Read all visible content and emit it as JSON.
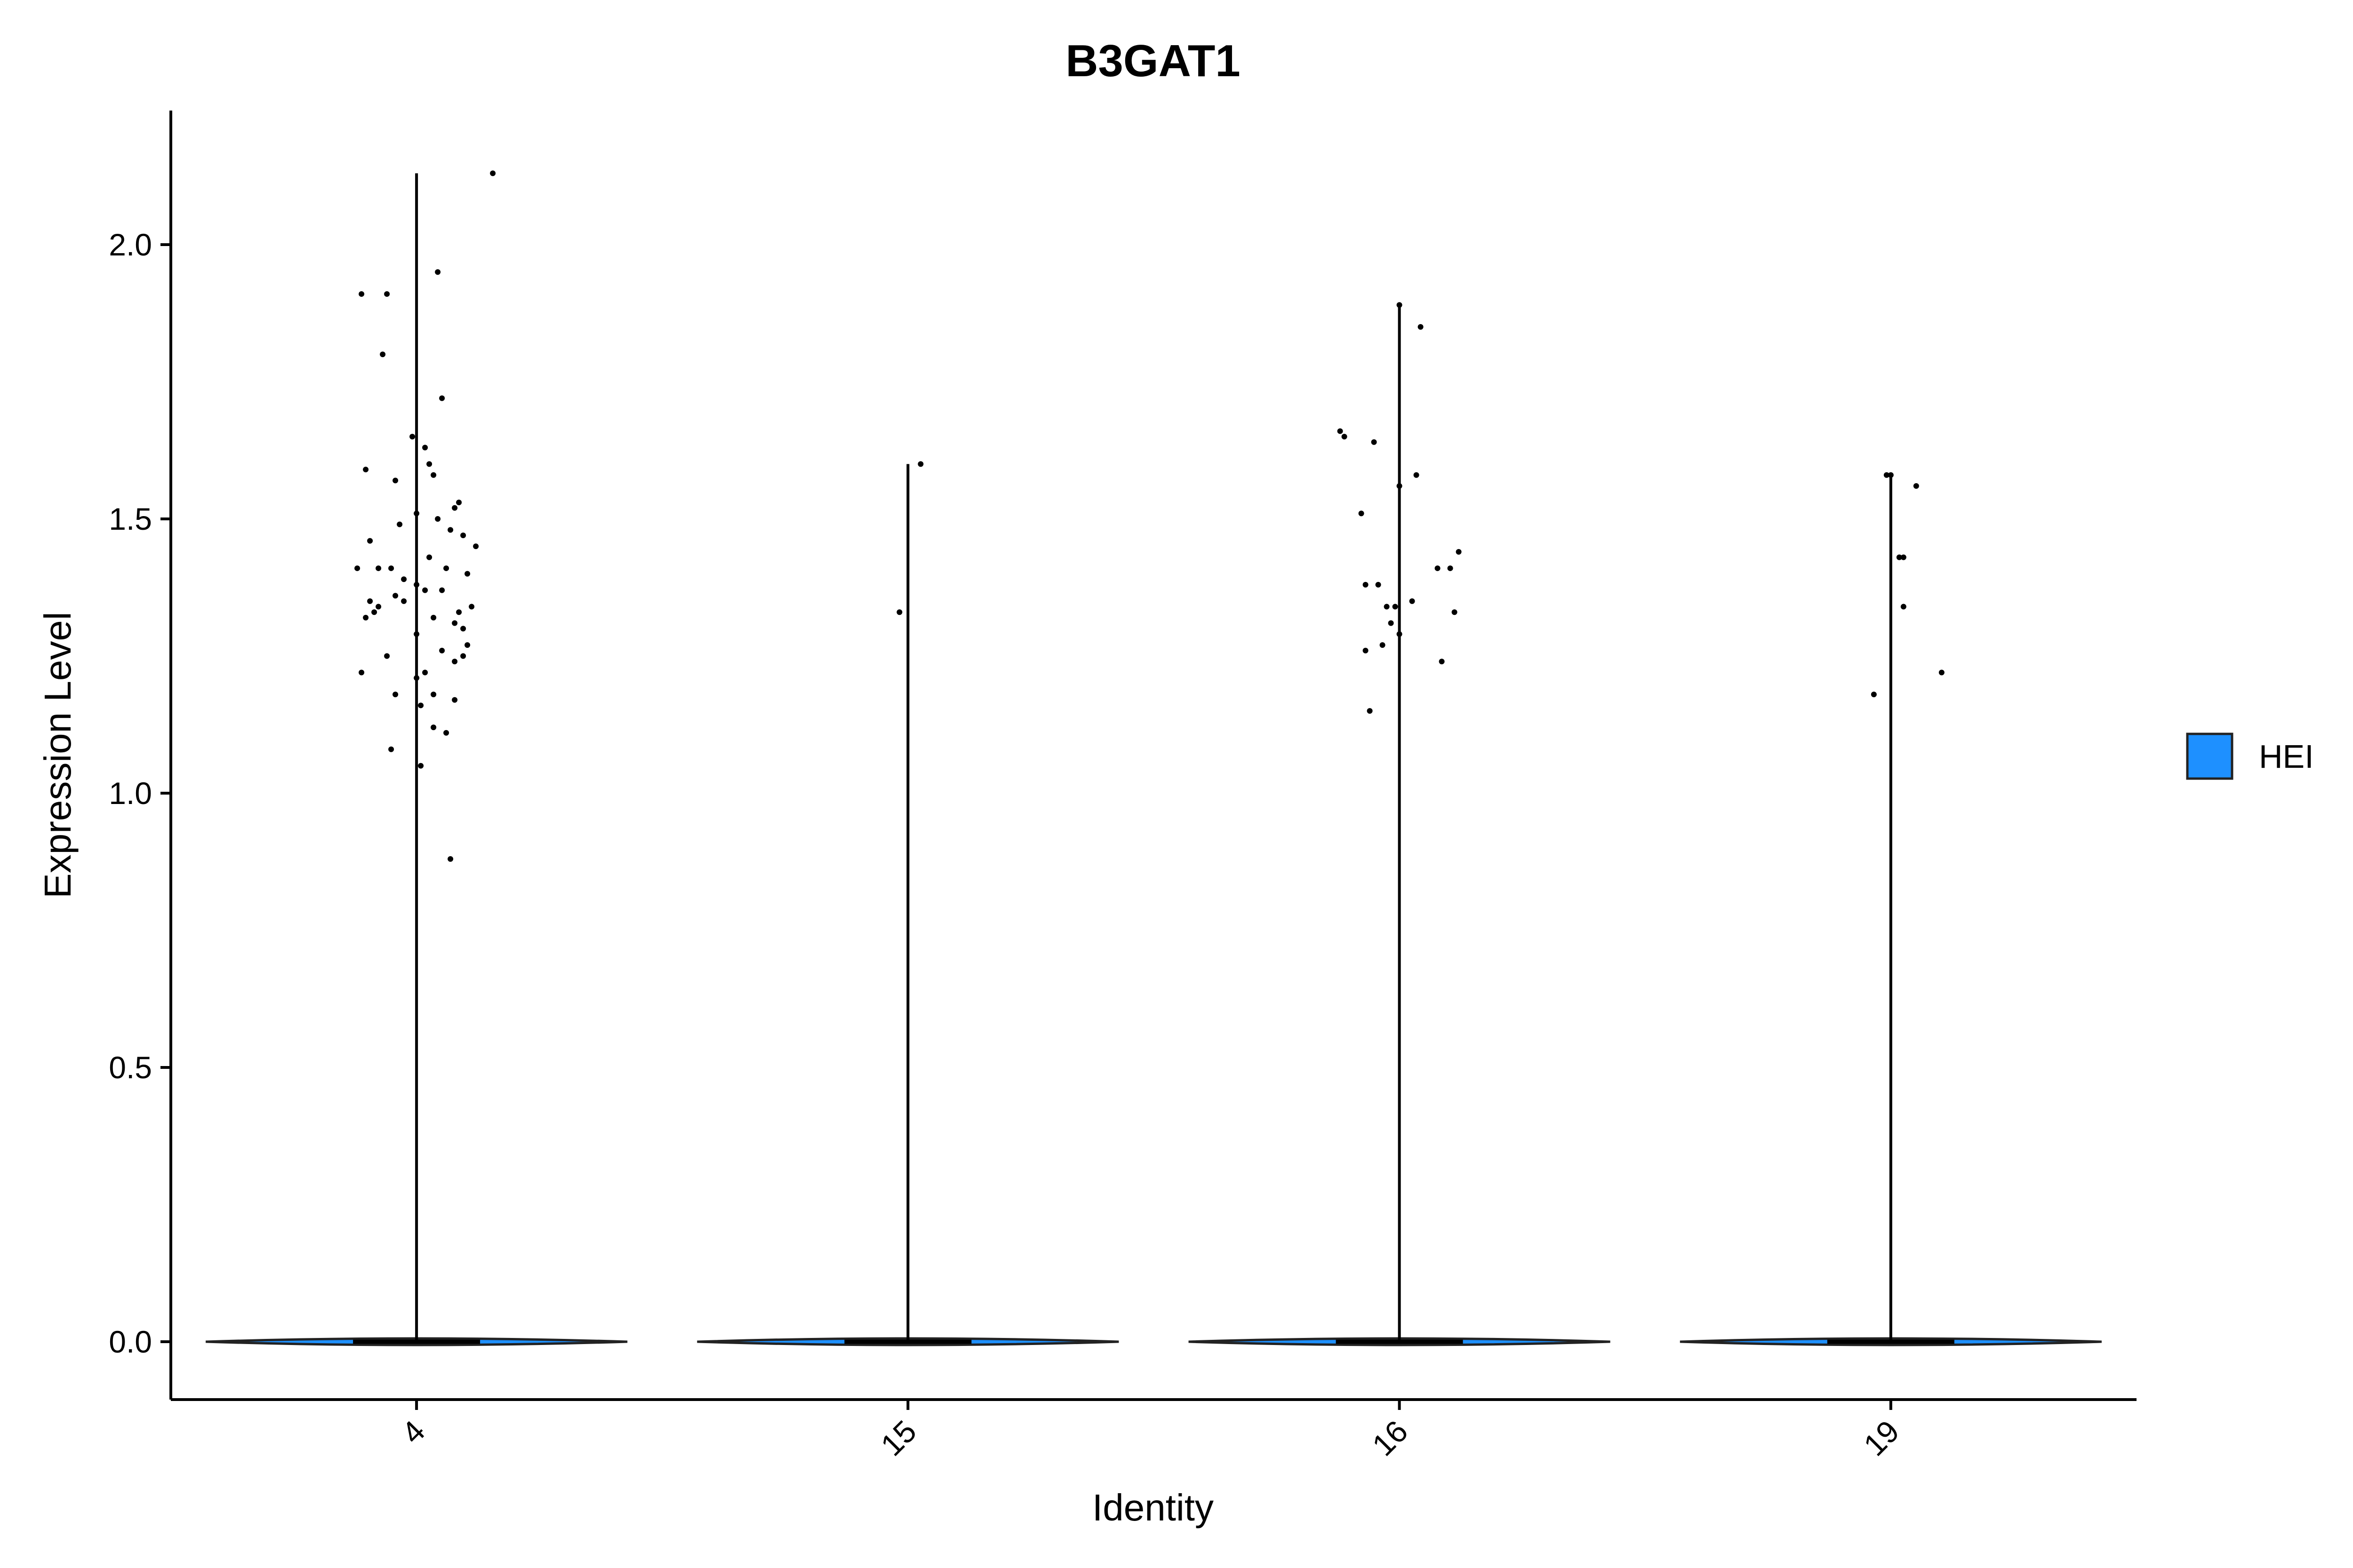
{
  "chart_data": {
    "type": "violin",
    "title": "B3GAT1",
    "xlabel": "Identity",
    "ylabel": "Expression Level",
    "ylim": [
      -0.1,
      2.25
    ],
    "yticks": [
      0.0,
      0.5,
      1.0,
      1.5,
      2.0
    ],
    "ytick_labels": [
      "0.0",
      "0.5",
      "1.0",
      "1.5",
      "2.0"
    ],
    "categories": [
      "4",
      "15",
      "16",
      "19"
    ],
    "legend": {
      "position": "right",
      "entries": [
        {
          "name": "HEI",
          "color": "#1E90FF"
        }
      ]
    },
    "violin_color": "#1E90FF",
    "groups": [
      {
        "category": "4",
        "max": 2.13,
        "points": [
          [
            0.18,
            2.13
          ],
          [
            -0.13,
            1.91
          ],
          [
            0.05,
            1.95
          ],
          [
            -0.07,
            1.91
          ],
          [
            -0.08,
            1.8
          ],
          [
            0.06,
            1.72
          ],
          [
            -0.01,
            1.65
          ],
          [
            0.02,
            1.63
          ],
          [
            0.03,
            1.6
          ],
          [
            -0.12,
            1.59
          ],
          [
            0.04,
            1.58
          ],
          [
            -0.05,
            1.57
          ],
          [
            0.1,
            1.53
          ],
          [
            0.09,
            1.52
          ],
          [
            0.0,
            1.51
          ],
          [
            0.05,
            1.5
          ],
          [
            -0.04,
            1.49
          ],
          [
            0.08,
            1.48
          ],
          [
            0.11,
            1.47
          ],
          [
            -0.11,
            1.46
          ],
          [
            0.14,
            1.45
          ],
          [
            0.03,
            1.43
          ],
          [
            -0.14,
            1.41
          ],
          [
            -0.09,
            1.41
          ],
          [
            -0.06,
            1.41
          ],
          [
            0.07,
            1.41
          ],
          [
            0.12,
            1.4
          ],
          [
            -0.03,
            1.39
          ],
          [
            0.0,
            1.38
          ],
          [
            0.06,
            1.37
          ],
          [
            0.02,
            1.37
          ],
          [
            -0.05,
            1.36
          ],
          [
            -0.03,
            1.35
          ],
          [
            -0.11,
            1.35
          ],
          [
            -0.09,
            1.34
          ],
          [
            0.13,
            1.34
          ],
          [
            0.1,
            1.33
          ],
          [
            -0.1,
            1.33
          ],
          [
            -0.12,
            1.32
          ],
          [
            0.04,
            1.32
          ],
          [
            0.09,
            1.31
          ],
          [
            0.11,
            1.3
          ],
          [
            0.0,
            1.29
          ],
          [
            0.12,
            1.27
          ],
          [
            0.06,
            1.26
          ],
          [
            -0.07,
            1.25
          ],
          [
            0.11,
            1.25
          ],
          [
            0.09,
            1.24
          ],
          [
            -0.13,
            1.22
          ],
          [
            0.02,
            1.22
          ],
          [
            0.0,
            1.21
          ],
          [
            -0.05,
            1.18
          ],
          [
            0.04,
            1.18
          ],
          [
            0.09,
            1.17
          ],
          [
            0.01,
            1.16
          ],
          [
            0.04,
            1.12
          ],
          [
            0.07,
            1.11
          ],
          [
            -0.06,
            1.08
          ],
          [
            0.01,
            1.05
          ],
          [
            0.08,
            0.88
          ]
        ]
      },
      {
        "category": "15",
        "max": 1.6,
        "points": [
          [
            0.03,
            1.6
          ],
          [
            -0.02,
            1.33
          ]
        ]
      },
      {
        "category": "16",
        "max": 1.89,
        "points": [
          [
            0.0,
            1.89
          ],
          [
            0.05,
            1.85
          ],
          [
            -0.14,
            1.66
          ],
          [
            -0.13,
            1.65
          ],
          [
            -0.06,
            1.64
          ],
          [
            0.04,
            1.58
          ],
          [
            0.0,
            1.56
          ],
          [
            -0.09,
            1.51
          ],
          [
            0.14,
            1.44
          ],
          [
            0.09,
            1.41
          ],
          [
            0.12,
            1.41
          ],
          [
            -0.08,
            1.38
          ],
          [
            -0.05,
            1.38
          ],
          [
            0.03,
            1.35
          ],
          [
            -0.03,
            1.34
          ],
          [
            -0.01,
            1.34
          ],
          [
            0.13,
            1.33
          ],
          [
            -0.02,
            1.31
          ],
          [
            0.0,
            1.29
          ],
          [
            -0.04,
            1.27
          ],
          [
            -0.08,
            1.26
          ],
          [
            0.1,
            1.24
          ],
          [
            -0.07,
            1.15
          ]
        ]
      },
      {
        "category": "19",
        "max": 1.58,
        "points": [
          [
            -0.01,
            1.58
          ],
          [
            0.0,
            1.58
          ],
          [
            0.06,
            1.56
          ],
          [
            0.02,
            1.43
          ],
          [
            0.03,
            1.43
          ],
          [
            0.03,
            1.34
          ],
          [
            0.12,
            1.22
          ],
          [
            -0.04,
            1.18
          ]
        ]
      }
    ]
  }
}
